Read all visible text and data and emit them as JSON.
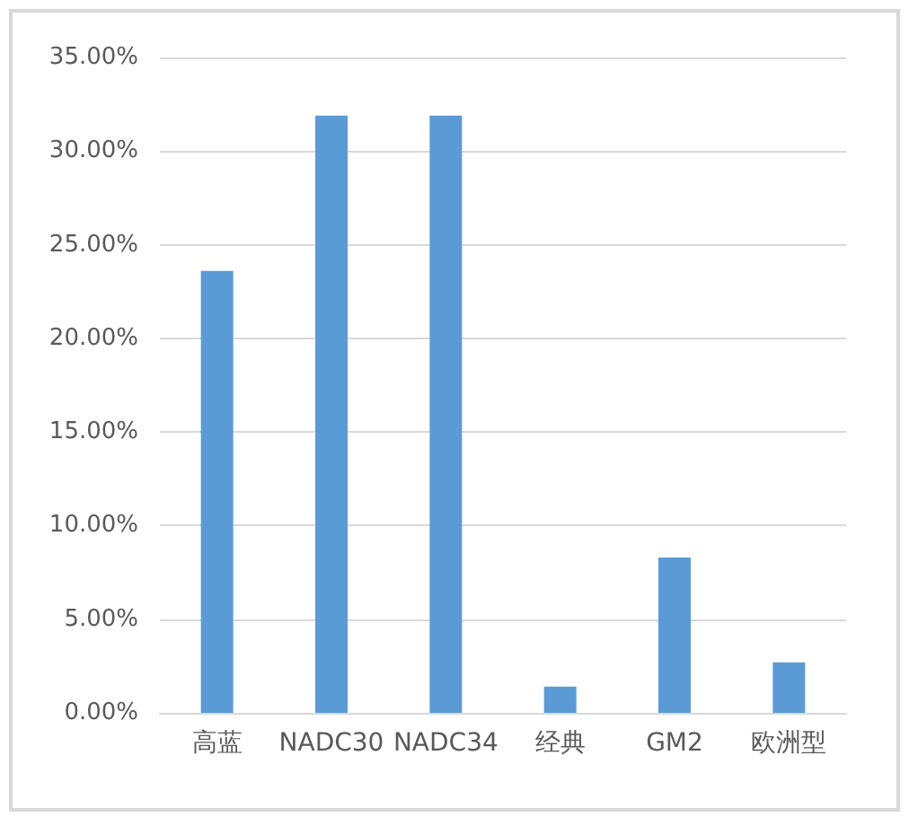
{
  "chart_data": {
    "type": "bar",
    "categories": [
      "高蓝",
      "NADC30",
      "NADC34",
      "经典",
      "GM2",
      "欧洲型"
    ],
    "values": [
      23.6,
      31.9,
      31.9,
      1.4,
      8.3,
      2.7
    ],
    "color": "#5b9bd5",
    "ylim": [
      0,
      35
    ],
    "yticks": [
      {
        "value": 0,
        "label": "0.00%"
      },
      {
        "value": 5,
        "label": "5.00%"
      },
      {
        "value": 10,
        "label": "10.00%"
      },
      {
        "value": 15,
        "label": "15.00%"
      },
      {
        "value": 20,
        "label": "20.00%"
      },
      {
        "value": 25,
        "label": "25.00%"
      },
      {
        "value": 30,
        "label": "30.00%"
      },
      {
        "value": 35,
        "label": "35.00%"
      }
    ],
    "grid": "y"
  }
}
